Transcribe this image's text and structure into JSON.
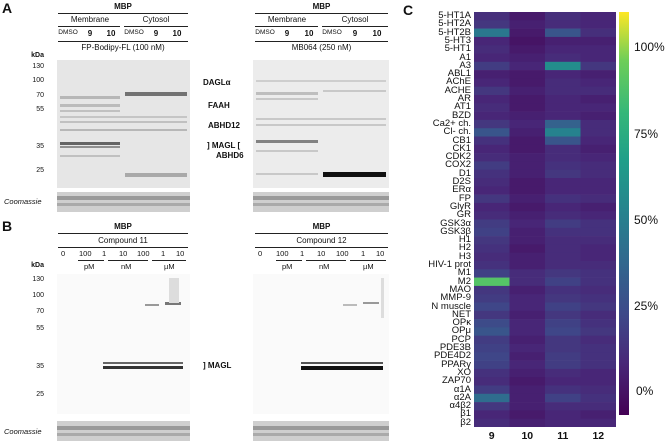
{
  "panel_a": {
    "letter": "A",
    "gels": [
      {
        "top_header": "MBP",
        "groups": [
          "Membrane",
          "Cytosol"
        ],
        "lanes": [
          "DMSO",
          "9",
          "10",
          "DMSO",
          "9",
          "10"
        ],
        "probe": "FP-Bodipy-FL (100 nM)"
      },
      {
        "top_header": "MBP",
        "groups": [
          "Membrane",
          "Cytosol"
        ],
        "lanes": [
          "DMSO",
          "9",
          "10",
          "DMSO",
          "9",
          "10"
        ],
        "probe": "MB064 (250 nM)"
      }
    ],
    "kda_title": "kDa",
    "markers": [
      "130",
      "100",
      "70",
      "55",
      "35",
      "25"
    ],
    "band_labels": [
      "DAGLα",
      "FAAH",
      "ABHD12",
      "] MAGL [",
      "ABHD6"
    ],
    "coomassie": "Coomassie"
  },
  "panel_b": {
    "letter": "B",
    "gels": [
      {
        "top_header": "MBP",
        "compound": "Compound 11",
        "concs": [
          "0",
          "100",
          "1",
          "10",
          "100",
          "1",
          "10"
        ],
        "units": [
          "pM",
          "nM",
          "µM"
        ]
      },
      {
        "top_header": "MBP",
        "compound": "Compound 12",
        "concs": [
          "0",
          "100",
          "1",
          "10",
          "100",
          "1",
          "10"
        ],
        "units": [
          "pM",
          "nM",
          "µM"
        ]
      }
    ],
    "kda_title": "kDa",
    "markers": [
      "130",
      "100",
      "70",
      "55",
      "35",
      "25"
    ],
    "band_label": "] MAGL",
    "coomassie": "Coomassie"
  },
  "panel_c": {
    "letter": "C",
    "colorbar_ticks": [
      "100%",
      "75%",
      "50%",
      "25%",
      "0%"
    ]
  },
  "chart_data": {
    "type": "heatmap",
    "columns": [
      "9",
      "10",
      "11",
      "12"
    ],
    "rows": [
      "5-HT1A",
      "5-HT2A",
      "5-HT2B",
      "5-HT3",
      "5-HT1",
      "A1",
      "A3",
      "ABL1",
      "AChE",
      "ACHE",
      "AR",
      "AT1",
      "BZD",
      "Ca2+ ch.",
      "Cl- ch.",
      "CB1",
      "CK1",
      "CDK2",
      "COX2",
      "D1",
      "D2S",
      "ERα",
      "FP",
      "GlyR",
      "GR",
      "GSK3α",
      "GSK3β",
      "H1",
      "H2",
      "H3",
      "HIV-1 prot",
      "M1",
      "M2",
      "MAO",
      "MMP-9",
      "N muscle",
      "NET",
      "OPκ",
      "OPμ",
      "PCP",
      "PDE3B",
      "PDE4D2",
      "PPARγ",
      "XO",
      "ZAP70",
      "α1A",
      "α2A",
      "α4β2",
      "β1",
      "β2"
    ],
    "values": [
      [
        15,
        8,
        15,
        12
      ],
      [
        18,
        10,
        14,
        12
      ],
      [
        45,
        8,
        30,
        15
      ],
      [
        12,
        6,
        10,
        10
      ],
      [
        14,
        8,
        12,
        12
      ],
      [
        12,
        10,
        14,
        12
      ],
      [
        20,
        12,
        55,
        18
      ],
      [
        10,
        8,
        12,
        10
      ],
      [
        12,
        8,
        14,
        12
      ],
      [
        18,
        10,
        14,
        14
      ],
      [
        12,
        8,
        12,
        10
      ],
      [
        14,
        8,
        12,
        12
      ],
      [
        12,
        10,
        12,
        10
      ],
      [
        18,
        12,
        35,
        14
      ],
      [
        30,
        10,
        50,
        14
      ],
      [
        16,
        8,
        30,
        12
      ],
      [
        12,
        8,
        14,
        10
      ],
      [
        14,
        10,
        14,
        12
      ],
      [
        20,
        10,
        16,
        14
      ],
      [
        16,
        10,
        18,
        14
      ],
      [
        14,
        8,
        12,
        12
      ],
      [
        12,
        8,
        12,
        12
      ],
      [
        18,
        10,
        16,
        14
      ],
      [
        12,
        8,
        12,
        10
      ],
      [
        14,
        10,
        14,
        12
      ],
      [
        20,
        12,
        20,
        16
      ],
      [
        22,
        10,
        16,
        16
      ],
      [
        18,
        10,
        14,
        14
      ],
      [
        16,
        8,
        14,
        12
      ],
      [
        14,
        10,
        14,
        12
      ],
      [
        16,
        10,
        14,
        14
      ],
      [
        22,
        14,
        18,
        16
      ],
      [
        82,
        14,
        22,
        16
      ],
      [
        18,
        10,
        16,
        14
      ],
      [
        20,
        12,
        18,
        16
      ],
      [
        24,
        12,
        22,
        18
      ],
      [
        18,
        10,
        18,
        14
      ],
      [
        26,
        12,
        22,
        16
      ],
      [
        30,
        12,
        24,
        18
      ],
      [
        20,
        10,
        18,
        14
      ],
      [
        22,
        12,
        18,
        16
      ],
      [
        24,
        10,
        20,
        16
      ],
      [
        22,
        12,
        20,
        16
      ],
      [
        16,
        10,
        14,
        12
      ],
      [
        14,
        8,
        12,
        12
      ],
      [
        20,
        10,
        16,
        14
      ],
      [
        40,
        10,
        22,
        16
      ],
      [
        18,
        10,
        14,
        14
      ],
      [
        12,
        8,
        12,
        10
      ],
      [
        14,
        10,
        12,
        12
      ]
    ],
    "vmin": 0,
    "vmax": 100,
    "colormap": "viridis"
  }
}
